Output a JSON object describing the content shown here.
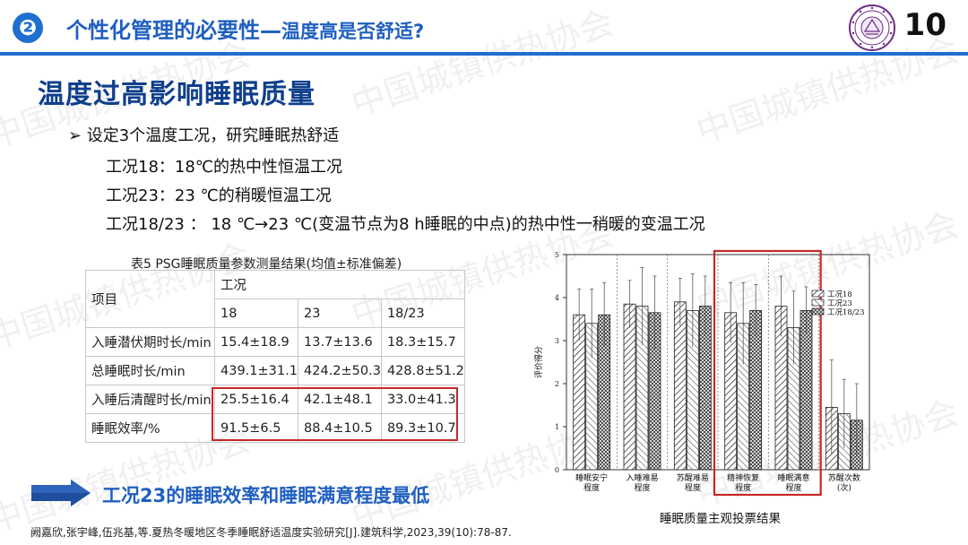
{
  "header": {
    "number": "❷",
    "title_main": "个性化管理的必要性—",
    "title_sub": "温度高是否舒适?",
    "page_number": "10"
  },
  "section_title": "温度过高影响睡眠质量",
  "bullets": {
    "main": "➢ 设定3个温度工况，研究睡眠热舒适",
    "cond1": "工况18：18℃的热中性恒温工况",
    "cond2": "工况23：23 ℃的稍暖恒温工况",
    "cond3": "工况18/23 ： 18 ℃→23 ℃(变温节点为8 h睡眠的中点)的热中性一稍暖的变温工况"
  },
  "table": {
    "caption": "表5 PSG睡眠质量参数测量结果(均值±标准偏差)",
    "header_item": "项目",
    "header_group": "工况",
    "conditions": [
      "18",
      "23",
      "18/23"
    ],
    "rows": [
      {
        "label": "入睡潜伏期时长/min",
        "values": [
          "15.4±18.9",
          "13.7±13.6",
          "18.3±15.7"
        ]
      },
      {
        "label": "总睡眠时长/min",
        "values": [
          "439.1±31.1",
          "424.2±50.3",
          "428.8±51.2"
        ]
      },
      {
        "label": "入睡后清醒时长/min",
        "values": [
          "25.5±16.4",
          "42.1±48.1",
          "33.0±41.3"
        ]
      },
      {
        "label": "睡眠效率/%",
        "values": [
          "91.5±6.5",
          "88.4±10.5",
          "89.3±10.7"
        ]
      }
    ]
  },
  "conclusion": "工况23的睡眠效率和睡眠满意程度最低",
  "citation": "阙嘉欣,张宇峰,伍兆基,等.夏热冬暖地区冬季睡眠舒适温度实验研究[J].建筑科学,2023,39(10):78-87.",
  "watermark": "中国城镇供热协会",
  "colors": {
    "accent": "#1f6fd0",
    "dark_blue": "#0f3f8c",
    "highlight": "#c62828"
  },
  "chart_data": {
    "type": "bar",
    "title": "睡眠质量主观投票结果",
    "ylabel": "评价得分",
    "ylim": [
      0,
      5
    ],
    "yticks": [
      "0",
      "1",
      "2",
      "3",
      "4",
      "5"
    ],
    "categories": [
      "睡眠安宁|程度",
      "入睡难易|程度",
      "苏醒难易|程度",
      "精神恢复|程度",
      "睡眠满意|程度",
      "苏醒次数|(次)"
    ],
    "series": [
      {
        "name": "工况18",
        "values": [
          3.6,
          3.85,
          3.9,
          3.65,
          3.8,
          1.45
        ],
        "errors": [
          0.6,
          0.55,
          0.55,
          0.7,
          0.7,
          1.1
        ]
      },
      {
        "name": "工况23",
        "values": [
          3.4,
          3.8,
          3.7,
          3.4,
          3.3,
          1.3
        ],
        "errors": [
          0.8,
          0.9,
          0.85,
          0.95,
          0.85,
          0.8
        ]
      },
      {
        "name": "工况18/23",
        "values": [
          3.6,
          3.65,
          3.8,
          3.7,
          3.7,
          1.15
        ],
        "errors": [
          0.75,
          0.85,
          0.7,
          0.6,
          0.55,
          0.85
        ]
      }
    ],
    "legend_position": "top-right",
    "highlight_categories": [
      3,
      4
    ]
  }
}
